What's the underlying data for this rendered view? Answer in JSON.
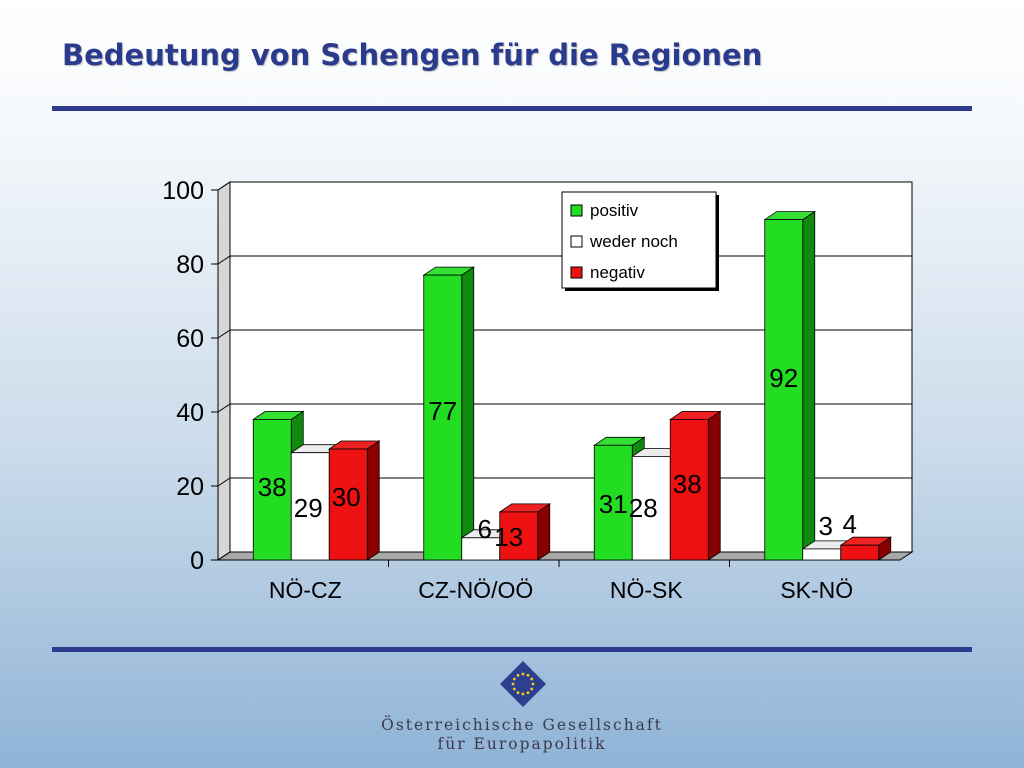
{
  "slide": {
    "title": "Bedeutung von Schengen für die Regionen"
  },
  "organization": {
    "name_line1": "Österreichische Gesellschaft",
    "name_line2": "für Europapolitik"
  },
  "colors": {
    "title": "#2a3a8c",
    "rule": "#2e3a8e",
    "positiv": "#22dd22",
    "weder_noch": "#ffffff",
    "negativ": "#ee1111",
    "logo": "#2d3f8f",
    "logo_stars": "#f2cc1c"
  },
  "chart_data": {
    "type": "bar",
    "categories": [
      "NÖ-CZ",
      "CZ-NÖ/OÖ",
      "NÖ-SK",
      "SK-NÖ"
    ],
    "series": [
      {
        "name": "positiv",
        "values": [
          38,
          77,
          31,
          92
        ]
      },
      {
        "name": "weder noch",
        "values": [
          29,
          6,
          28,
          3
        ]
      },
      {
        "name": "negativ",
        "values": [
          30,
          13,
          38,
          4
        ]
      }
    ],
    "ylim": [
      0,
      100
    ],
    "yticks": [
      "0",
      "20",
      "40",
      "60",
      "80",
      "100"
    ],
    "grid": true,
    "legend_position": "top-right",
    "style": "3d-column"
  }
}
